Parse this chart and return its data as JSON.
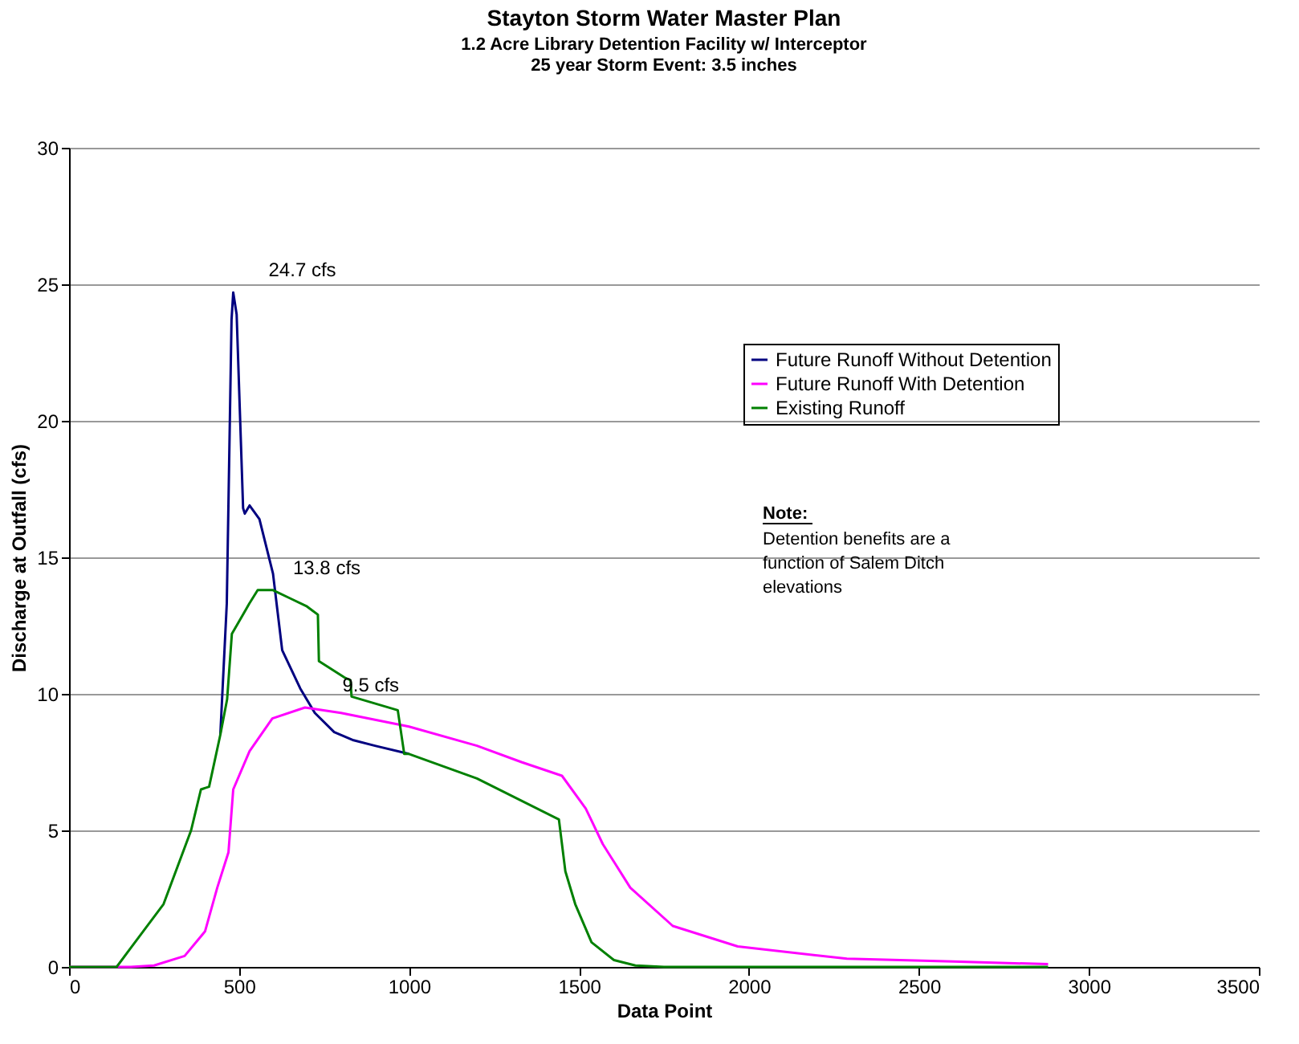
{
  "chart_data": {
    "type": "line",
    "title": "Stayton Storm Water Master Plan",
    "subtitle": "1.2 Acre Library Detention Facility w/ Interceptor\n25 year Storm Event: 3.5 inches",
    "xlabel": "Data Point",
    "ylabel": "Discharge at Outfall (cfs)",
    "xlim": [
      0,
      3500
    ],
    "xticks": [
      0,
      500,
      1000,
      1500,
      2000,
      2500,
      3000,
      3500
    ],
    "ylim": [
      0,
      30
    ],
    "yticks": [
      0,
      5,
      10,
      15,
      20,
      25,
      30
    ],
    "grid": "y",
    "legend": "top right",
    "line_style": "solid",
    "marker": "none",
    "series": [
      {
        "name": "Future Runoff Without Detention",
        "color": "#000080",
        "x": [
          445,
          464,
          478,
          483,
          493,
          512,
          517,
          531,
          560,
          600,
          627,
          680,
          723,
          780,
          837,
          900,
          1000
        ],
        "values": [
          8.5,
          13.3,
          23.7,
          24.7,
          23.9,
          16.8,
          16.6,
          16.9,
          16.4,
          14.4,
          11.6,
          10.2,
          9.3,
          8.6,
          8.3,
          8.1,
          7.8
        ]
      },
      {
        "name": "Future Runoff With Detention",
        "color": "#ff00ff",
        "x": [
          0,
          182,
          250,
          340,
          400,
          436,
          469,
          483,
          531,
          598,
          694,
          800,
          1000,
          1200,
          1331,
          1450,
          1520,
          1570,
          1651,
          1776,
          1967,
          2288,
          2600,
          2880
        ],
        "values": [
          0,
          0,
          0.05,
          0.4,
          1.3,
          2.9,
          4.2,
          6.5,
          7.9,
          9.1,
          9.5,
          9.3,
          8.8,
          8.1,
          7.5,
          7.0,
          5.8,
          4.5,
          2.9,
          1.5,
          0.75,
          0.3,
          0.2,
          0.1
        ]
      },
      {
        "name": "Existing Runoff",
        "color": "#008000",
        "x": [
          0,
          140,
          182,
          278,
          359,
          388,
          412,
          445,
          465,
          479,
          507,
          530,
          555,
          600,
          650,
          700,
          732,
          735,
          810,
          828,
          831,
          967,
          986,
          1000,
          1200,
          1441,
          1460,
          1489,
          1537,
          1603,
          1666,
          1750,
          2880
        ],
        "values": [
          0,
          0,
          0.7,
          2.3,
          5.0,
          6.5,
          6.6,
          8.5,
          9.8,
          12.2,
          12.8,
          13.3,
          13.8,
          13.8,
          13.5,
          13.2,
          12.9,
          11.2,
          10.6,
          10.5,
          9.9,
          9.4,
          7.8,
          7.8,
          6.9,
          5.4,
          3.5,
          2.3,
          0.9,
          0.25,
          0.05,
          0,
          0
        ]
      }
    ],
    "annotations": [
      {
        "text": "24.7 cfs",
        "x": 483,
        "y": 24.7
      },
      {
        "text": "13.8 cfs",
        "x": 555,
        "y": 13.8
      },
      {
        "text": "9.5 cfs",
        "x": 700,
        "y": 9.5
      },
      "Note:",
      "Detention benefits are a function of Salem Ditch elevations"
    ]
  }
}
